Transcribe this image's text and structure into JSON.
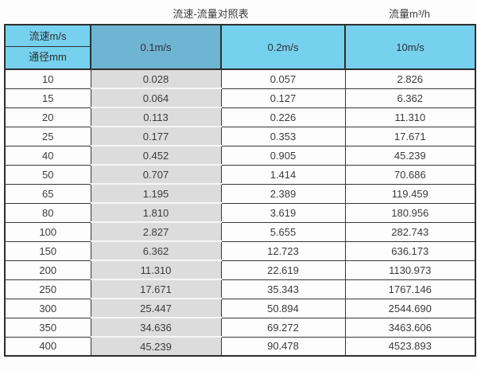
{
  "page": {
    "title_main": "流速-流量对照表",
    "title_right": "流量m³/h"
  },
  "table": {
    "corner_top": "流速m/s",
    "corner_bottom": "通径mm",
    "columns": [
      "0.1m/s",
      "0.2m/s",
      "10m/s"
    ],
    "rows": [
      {
        "diameter": "10",
        "values": [
          "0.028",
          "0.057",
          "2.826"
        ]
      },
      {
        "diameter": "15",
        "values": [
          "0.064",
          "0.127",
          "6.362"
        ]
      },
      {
        "diameter": "20",
        "values": [
          "0.113",
          "0.226",
          "11.310"
        ]
      },
      {
        "diameter": "25",
        "values": [
          "0.177",
          "0.353",
          "17.671"
        ]
      },
      {
        "diameter": "40",
        "values": [
          "0.452",
          "0.905",
          "45.239"
        ]
      },
      {
        "diameter": "50",
        "values": [
          "0.707",
          "1.414",
          "70.686"
        ]
      },
      {
        "diameter": "65",
        "values": [
          "1.195",
          "2.389",
          "119.459"
        ]
      },
      {
        "diameter": "80",
        "values": [
          "1.810",
          "3.619",
          "180.956"
        ]
      },
      {
        "diameter": "100",
        "values": [
          "2.827",
          "5.655",
          "282.743"
        ]
      },
      {
        "diameter": "150",
        "values": [
          "6.362",
          "12.723",
          "636.173"
        ]
      },
      {
        "diameter": "200",
        "values": [
          "11.310",
          "22.619",
          "1130.973"
        ]
      },
      {
        "diameter": "250",
        "values": [
          "17.671",
          "35.343",
          "1767.146"
        ]
      },
      {
        "diameter": "300",
        "values": [
          "25.447",
          "50.894",
          "2544.690"
        ]
      },
      {
        "diameter": "350",
        "values": [
          "34.636",
          "69.272",
          "3463.606"
        ]
      },
      {
        "diameter": "400",
        "values": [
          "45.239",
          "90.478",
          "4523.893"
        ]
      }
    ]
  },
  "colors": {
    "header_blue": "#76d1ef",
    "header_blue_dark": "#6eb5d3",
    "gray_column": "#dcdcdc",
    "border_dark": "#2e2e2e",
    "text": "#3b3b3b"
  },
  "chart_data": {
    "type": "table",
    "title": "流速-流量对照表",
    "unit_label": "流量m³/h",
    "row_header_label": "通径mm",
    "col_header_label": "流速m/s",
    "categories": [
      10,
      15,
      20,
      25,
      40,
      50,
      65,
      80,
      100,
      150,
      200,
      250,
      300,
      350,
      400
    ],
    "series": [
      {
        "name": "0.1m/s",
        "values": [
          0.028,
          0.064,
          0.113,
          0.177,
          0.452,
          0.707,
          1.195,
          1.81,
          2.827,
          6.362,
          11.31,
          17.671,
          25.447,
          34.636,
          45.239
        ]
      },
      {
        "name": "0.2m/s",
        "values": [
          0.057,
          0.127,
          0.226,
          0.353,
          0.905,
          1.414,
          2.389,
          3.619,
          5.655,
          12.723,
          22.619,
          35.343,
          50.894,
          69.272,
          90.478
        ]
      },
      {
        "name": "10m/s",
        "values": [
          2.826,
          6.362,
          11.31,
          17.671,
          45.239,
          70.686,
          119.459,
          180.956,
          282.743,
          636.173,
          1130.973,
          1767.146,
          2544.69,
          3463.606,
          4523.893
        ]
      }
    ]
  }
}
